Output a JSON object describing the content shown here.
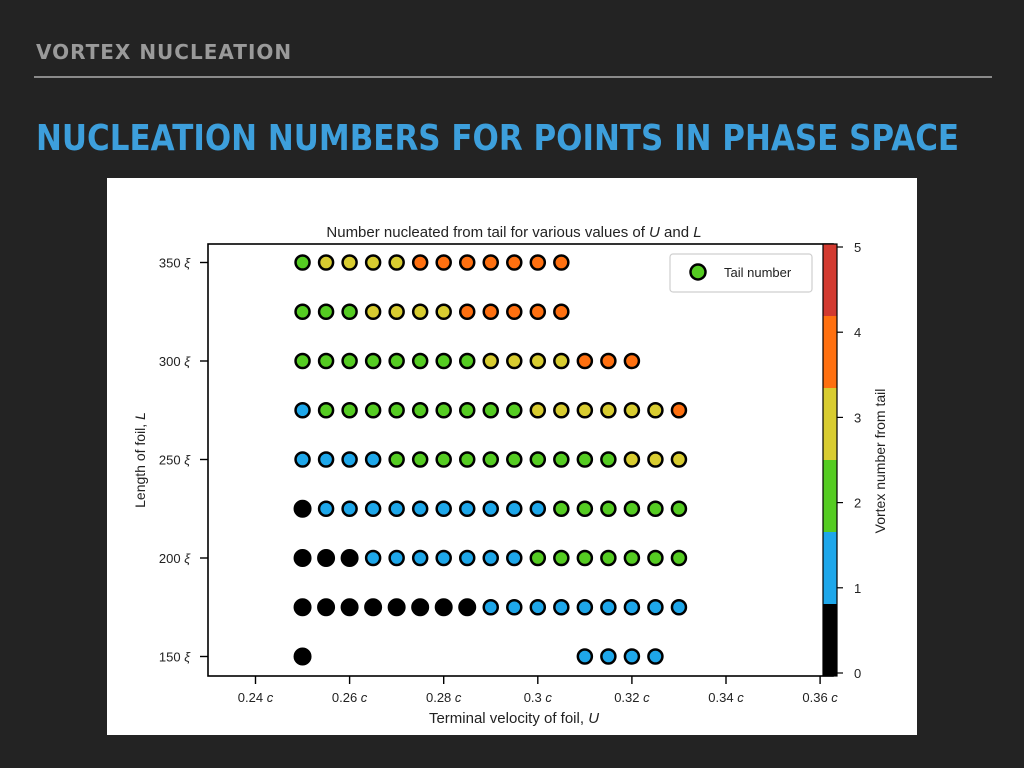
{
  "header": {
    "section": "VORTEX NUCLEATION",
    "title": "NUCLEATION NUMBERS FOR POINTS IN PHASE SPACE"
  },
  "chart_data": {
    "type": "scatter",
    "title": "Number nucleated from tail for various values of U and L",
    "xlabel": "Terminal velocity of foil, U",
    "ylabel": "Length of foil, L",
    "xlim": [
      0.23,
      0.36
    ],
    "ylim": [
      145,
      355
    ],
    "x_ticks": [
      0.24,
      0.26,
      0.28,
      0.3,
      0.32,
      0.34,
      0.36
    ],
    "x_tick_labels": [
      "0.24 c",
      "0.26 c",
      "0.28 c",
      "0.3 c",
      "0.32 c",
      "0.34 c",
      "0.36 c"
    ],
    "y_ticks": [
      150,
      200,
      250,
      300,
      350
    ],
    "y_tick_labels": [
      "150 ξ",
      "200 ξ",
      "250 ξ",
      "300 ξ",
      "350 ξ"
    ],
    "legend": {
      "entries": [
        "Tail number"
      ],
      "position": "top-right"
    },
    "colorbar": {
      "label": "Vortex number from tail",
      "ticks": [
        0,
        1,
        2,
        3,
        4,
        5
      ],
      "colors": [
        "#000000",
        "#1ea7ea",
        "#55cc22",
        "#d8cc30",
        "#ff7010",
        "#d23a30"
      ]
    },
    "series": [
      {
        "y": 350,
        "x_start": 0.25,
        "values": [
          2,
          3,
          3,
          3,
          3,
          4,
          4,
          4,
          4,
          4,
          4,
          4
        ]
      },
      {
        "y": 325,
        "x_start": 0.25,
        "values": [
          2,
          2,
          2,
          3,
          3,
          3,
          3,
          4,
          4,
          4,
          4,
          4
        ]
      },
      {
        "y": 300,
        "x_start": 0.25,
        "values": [
          2,
          2,
          2,
          2,
          2,
          2,
          2,
          2,
          3,
          3,
          3,
          3,
          4,
          4,
          4
        ]
      },
      {
        "y": 275,
        "x_start": 0.25,
        "values": [
          1,
          2,
          2,
          2,
          2,
          2,
          2,
          2,
          2,
          2,
          3,
          3,
          3,
          3,
          3,
          3,
          4
        ]
      },
      {
        "y": 250,
        "x_start": 0.25,
        "values": [
          1,
          1,
          1,
          1,
          2,
          2,
          2,
          2,
          2,
          2,
          2,
          2,
          2,
          2,
          3,
          3,
          3
        ]
      },
      {
        "y": 225,
        "x_start": 0.25,
        "values": [
          0,
          1,
          1,
          1,
          1,
          1,
          1,
          1,
          1,
          1,
          1,
          2,
          2,
          2,
          2,
          2,
          2
        ]
      },
      {
        "y": 200,
        "x_start": 0.25,
        "values": [
          0,
          0,
          0,
          1,
          1,
          1,
          1,
          1,
          1,
          1,
          2,
          2,
          2,
          2,
          2,
          2,
          2
        ]
      },
      {
        "y": 175,
        "x_start": 0.25,
        "values": [
          0,
          0,
          0,
          0,
          0,
          0,
          0,
          0,
          1,
          1,
          1,
          1,
          1,
          1,
          1,
          1,
          1
        ]
      },
      {
        "y": 150,
        "points": [
          {
            "x": 0.25,
            "v": 0
          },
          {
            "x": 0.31,
            "v": 1
          },
          {
            "x": 0.315,
            "v": 1
          },
          {
            "x": 0.32,
            "v": 1
          },
          {
            "x": 0.325,
            "v": 1
          }
        ]
      }
    ],
    "x_step": 0.005
  }
}
